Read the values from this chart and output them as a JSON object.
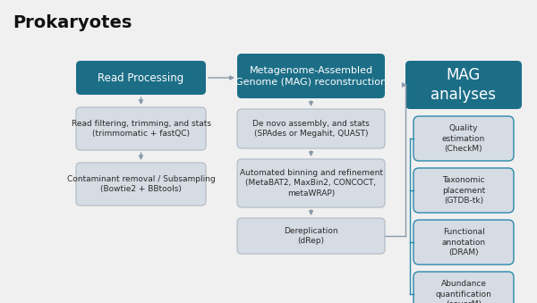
{
  "title": "Prokaryotes",
  "title_fontsize": 14,
  "title_fontweight": "bold",
  "background_color": "#f0f0f0",
  "teal_color": "#1c6e87",
  "light_box_fill": "#d6dce4",
  "box_outline_gray": "#b0bac4",
  "box_outline_teal": "#2a8aab",
  "arrow_color": "#8a9aaa",
  "text_dark": "#2a2a2a",
  "text_white": "#ffffff",
  "col1_header": "Read Processing",
  "col1_boxes": [
    "Read filtering, trimming, and stats\n(trimmomatic + fastQC)",
    "Contaminant removal / Subsampling\n(Bowtie2 + BBtools)"
  ],
  "col2_header": "Metagenome-Assembled\nGenome (MAG) reconstruction",
  "col2_boxes": [
    "De novo assembly, and stats\n(SPAdes or Megahit, QUAST)",
    "Automated binning and refinement\n(MetaBAT2, MaxBin2, CONCOCT,\nmetaWRAP)",
    "Dereplication\n(dRep)"
  ],
  "col3_header": "MAG\nanalyses",
  "col3_boxes": [
    "Quality\nestimation\n(CheckM)",
    "Taxonomic\nplacement\n(GTDB-tk)",
    "Functional\nannotation\n(DRAM)",
    "Abundance\nquantification\n(coverM)"
  ]
}
